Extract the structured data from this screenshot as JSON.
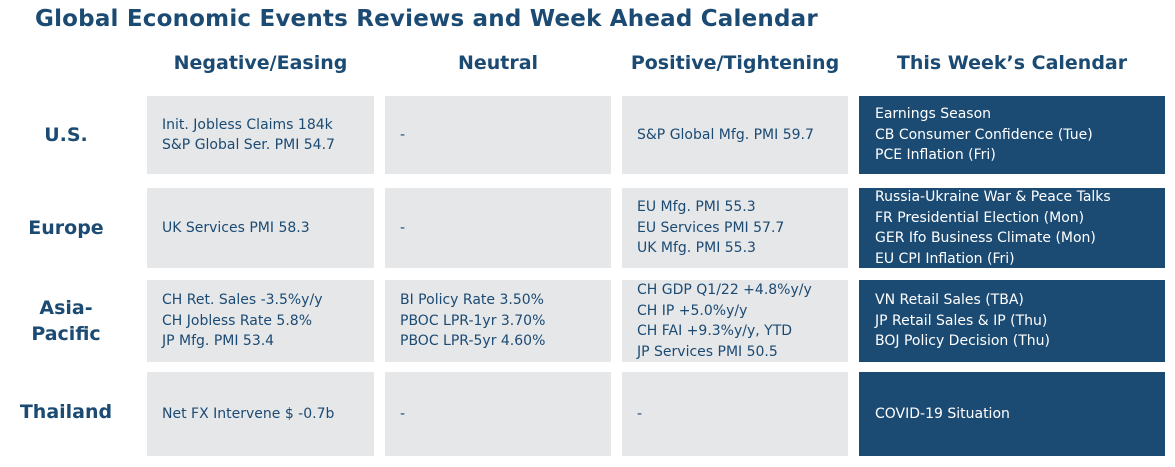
{
  "title": "Global Economic Events Reviews and Week Ahead Calendar",
  "columns": {
    "negative": "Negative/Easing",
    "neutral": "Neutral",
    "positive": "Positive/Tightening",
    "calendar": "This Week’s Calendar"
  },
  "rows": [
    {
      "region": "U.S.",
      "negative": [
        "Init. Jobless Claims 184k",
        "S&P Global Ser. PMI 54.7"
      ],
      "neutral": [
        "-"
      ],
      "positive": [
        "S&P Global Mfg. PMI 59.7"
      ],
      "calendar": [
        "Earnings Season",
        "CB Consumer Confidence (Tue)",
        "PCE Inflation (Fri)"
      ]
    },
    {
      "region": "Europe",
      "negative": [
        "UK Services PMI 58.3"
      ],
      "neutral": [
        "-"
      ],
      "positive": [
        "EU Mfg. PMI 55.3",
        "EU Services PMI 57.7",
        "UK Mfg. PMI 55.3"
      ],
      "calendar": [
        "Russia-Ukraine War & Peace Talks",
        "FR Presidential Election (Mon)",
        "GER Ifo Business Climate (Mon)",
        "EU CPI Inflation (Fri)"
      ]
    },
    {
      "region_lines": [
        "Asia-",
        "Pacific"
      ],
      "negative": [
        "CH Ret. Sales -3.5%y/y",
        "CH Jobless Rate 5.8%",
        "JP Mfg. PMI 53.4"
      ],
      "neutral": [
        "BI Policy Rate 3.50%",
        "PBOC LPR-1yr 3.70%",
        "PBOC LPR-5yr 4.60%"
      ],
      "positive": [
        "CH GDP Q1/22 +4.8%y/y",
        "CH IP +5.0%y/y",
        "CH FAI +9.3%y/y, YTD",
        "JP Services PMI 50.5"
      ],
      "calendar": [
        "VN Retail Sales (TBA)",
        "JP Retail Sales & IP (Thu)",
        "BOJ Policy Decision (Thu)"
      ]
    },
    {
      "region": "Thailand",
      "negative": [
        "Net FX Intervene $ -0.7b"
      ],
      "neutral": [
        "-"
      ],
      "positive": [
        "-"
      ],
      "calendar": [
        "COVID-19 Situation"
      ]
    }
  ],
  "colors": {
    "heading": "#1b4a73",
    "cell_bg": "#e6e7e9",
    "calendar_bg": "#1b4a73",
    "calendar_text": "#ffffff"
  }
}
